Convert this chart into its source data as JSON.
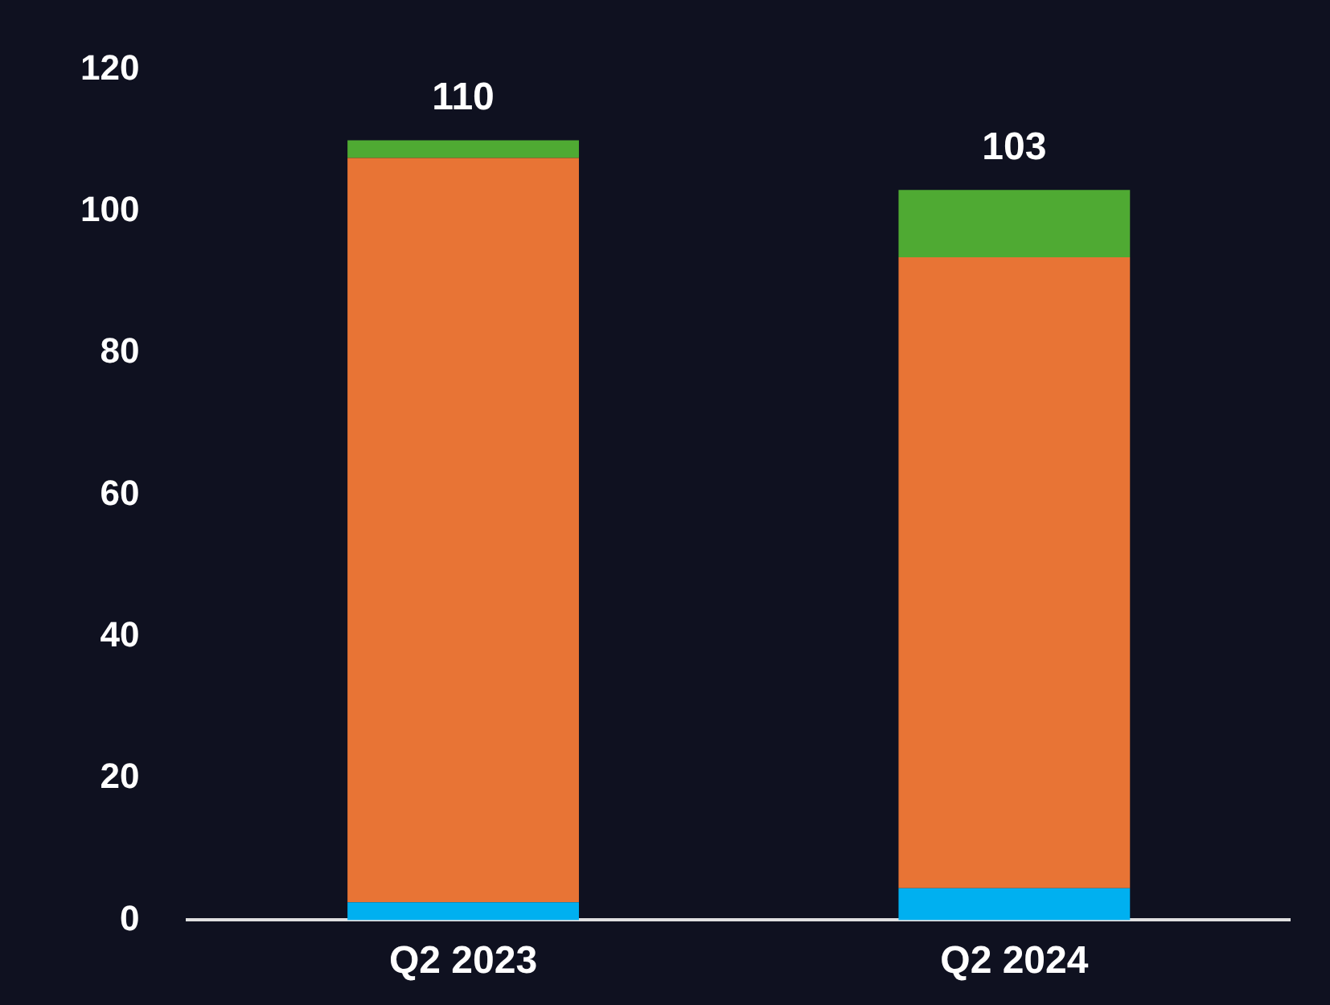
{
  "chart_data": {
    "type": "bar",
    "stacked": true,
    "categories": [
      "Q2 2023",
      "Q2 2024"
    ],
    "series": [
      {
        "color": "#00b0f0",
        "values": [
          2.5,
          4.5
        ]
      },
      {
        "color": "#e87435",
        "values": [
          105,
          89
        ]
      },
      {
        "color": "#4faa33",
        "values": [
          2.5,
          9.5
        ]
      }
    ],
    "ylim": [
      0,
      120
    ],
    "yticks": [
      0,
      20,
      40,
      60,
      80,
      100,
      120
    ],
    "grid": false,
    "legend": false,
    "totals": [
      "110",
      "103"
    ]
  }
}
